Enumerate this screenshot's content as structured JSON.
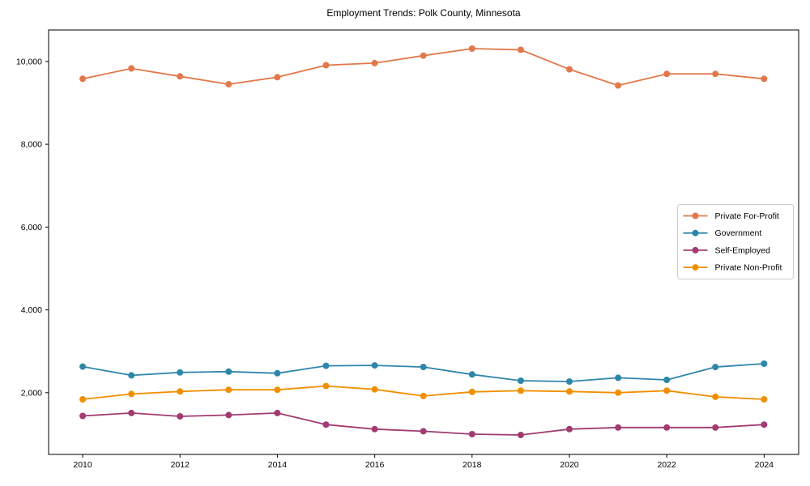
{
  "chart_data": {
    "type": "line",
    "title": "Employment Trends: Polk County, Minnesota",
    "xlabel": "",
    "ylabel": "",
    "x": [
      2010,
      2011,
      2012,
      2013,
      2014,
      2015,
      2016,
      2017,
      2018,
      2019,
      2020,
      2021,
      2022,
      2023,
      2024
    ],
    "series": [
      {
        "name": "Private For-Profit",
        "color": "#E2784A",
        "values": [
          9580,
          9830,
          9640,
          9450,
          9620,
          9910,
          9960,
          10140,
          10310,
          10280,
          9810,
          9420,
          9700,
          9700,
          9580
        ]
      },
      {
        "name": "Government",
        "color": "#2E86AB",
        "values": [
          2630,
          2420,
          2490,
          2510,
          2470,
          2650,
          2660,
          2620,
          2440,
          2290,
          2270,
          2360,
          2310,
          2620,
          2700
        ]
      },
      {
        "name": "Self-Employed",
        "color": "#A23B72",
        "values": [
          1440,
          1510,
          1430,
          1460,
          1510,
          1230,
          1120,
          1070,
          1000,
          980,
          1120,
          1160,
          1160,
          1160,
          1230
        ]
      },
      {
        "name": "Private Non-Profit",
        "color": "#F18F01",
        "values": [
          1840,
          1970,
          2030,
          2070,
          2070,
          2160,
          2080,
          1920,
          2020,
          2050,
          2030,
          2000,
          2050,
          1900,
          1840
        ]
      }
    ],
    "xticks": [
      2010,
      2012,
      2014,
      2016,
      2018,
      2020,
      2022,
      2024
    ],
    "xticklabels": [
      "2010",
      "2012",
      "2014",
      "2016",
      "2018",
      "2020",
      "2022",
      "2024"
    ],
    "yticks": [
      2000,
      4000,
      6000,
      8000,
      10000
    ],
    "yticklabels": [
      "2,000",
      "4,000",
      "6,000",
      "8,000",
      "10,000"
    ],
    "xlim": [
      2009.3,
      2024.71
    ],
    "ylim": [
      510,
      10760
    ],
    "grid": false,
    "legend_position": "center-right",
    "spine_color": "#000000",
    "background": "#ffffff"
  }
}
